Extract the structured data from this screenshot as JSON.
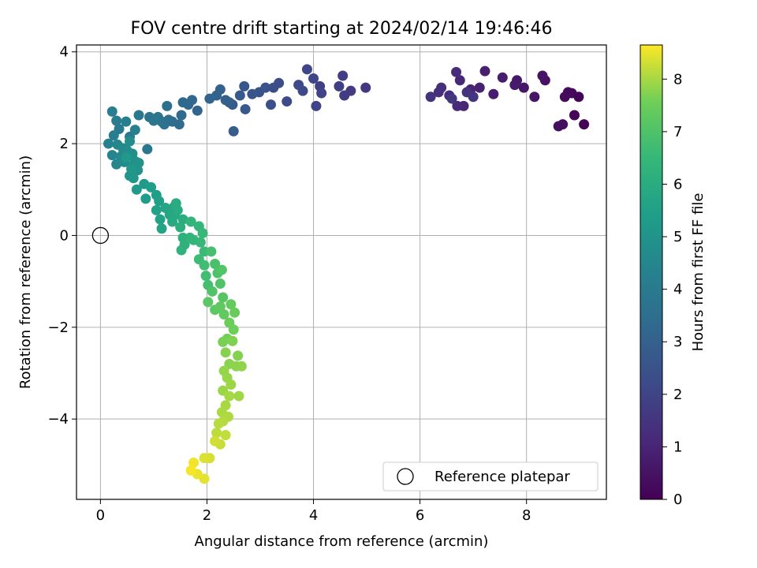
{
  "chart_data": {
    "type": "scatter",
    "title": "FOV centre drift starting at 2024/02/14 19:46:46",
    "xlabel": "Angular distance from reference (arcmin)",
    "ylabel": "Rotation from reference (arcmin)",
    "xlim": [
      -0.45,
      9.5
    ],
    "ylim": [
      -5.75,
      4.15
    ],
    "xticks": [
      0,
      2,
      4,
      6,
      8
    ],
    "yticks": [
      -4,
      -2,
      0,
      2,
      4
    ],
    "xtick_labels": [
      "0",
      "2",
      "4",
      "6",
      "8"
    ],
    "ytick_labels": [
      "−4",
      "−2",
      "0",
      "2",
      "4"
    ],
    "grid": true,
    "colorbar": {
      "label": "Hours from first FF file",
      "colormap": "viridis",
      "range": [
        0,
        8.65
      ],
      "ticks": [
        0,
        1,
        2,
        3,
        4,
        5,
        6,
        7,
        8
      ],
      "tick_labels": [
        "0",
        "1",
        "2",
        "3",
        "4",
        "5",
        "6",
        "7",
        "8"
      ]
    },
    "reference_point": {
      "x": 0,
      "y": 0,
      "legend_label": "Reference platepar"
    },
    "legend": {
      "placement": "lower-right",
      "entries": [
        "Reference platepar"
      ]
    },
    "points": [
      [
        9.08,
        2.42,
        0.05
      ],
      [
        8.98,
        3.02,
        0.1
      ],
      [
        8.9,
        2.62,
        0.15
      ],
      [
        8.85,
        3.1,
        0.2
      ],
      [
        8.78,
        3.12,
        0.25
      ],
      [
        8.72,
        3.02,
        0.3
      ],
      [
        8.68,
        2.42,
        0.35
      ],
      [
        8.6,
        2.38,
        0.4
      ],
      [
        8.35,
        3.38,
        0.45
      ],
      [
        8.3,
        3.48,
        0.5
      ],
      [
        8.15,
        3.02,
        0.55
      ],
      [
        7.95,
        3.22,
        0.6
      ],
      [
        7.82,
        3.38,
        0.65
      ],
      [
        7.78,
        3.28,
        0.7
      ],
      [
        7.55,
        3.44,
        0.75
      ],
      [
        7.38,
        3.08,
        0.8
      ],
      [
        7.22,
        3.58,
        0.85
      ],
      [
        7.12,
        3.22,
        0.9
      ],
      [
        6.95,
        3.18,
        1.0
      ],
      [
        6.82,
        2.82,
        1.05
      ],
      [
        6.75,
        3.38,
        1.1
      ],
      [
        6.7,
        2.82,
        1.15
      ],
      [
        6.68,
        3.56,
        1.2
      ],
      [
        6.55,
        3.05,
        1.25
      ],
      [
        6.4,
        3.22,
        1.3
      ],
      [
        6.35,
        3.12,
        1.35
      ],
      [
        6.2,
        3.02,
        1.4
      ],
      [
        6.88,
        3.12,
        1.45
      ],
      [
        7.0,
        3.02,
        1.5
      ],
      [
        6.6,
        2.98,
        1.55
      ],
      [
        4.98,
        3.22,
        1.65
      ],
      [
        4.7,
        3.15,
        1.7
      ],
      [
        4.58,
        3.05,
        1.75
      ],
      [
        4.55,
        3.48,
        1.8
      ],
      [
        4.48,
        3.25,
        1.85
      ],
      [
        4.12,
        3.25,
        1.9
      ],
      [
        4.15,
        3.1,
        1.95
      ],
      [
        4.05,
        2.82,
        2.0
      ],
      [
        4.0,
        3.42,
        2.05
      ],
      [
        3.88,
        3.62,
        2.1
      ],
      [
        3.8,
        3.15,
        2.15
      ],
      [
        3.72,
        3.28,
        2.2
      ],
      [
        3.5,
        2.92,
        2.25
      ],
      [
        3.35,
        3.32,
        2.3
      ],
      [
        3.25,
        3.22,
        2.35
      ],
      [
        3.2,
        2.85,
        2.4
      ],
      [
        3.1,
        3.22,
        2.5
      ],
      [
        2.98,
        3.12,
        2.55
      ],
      [
        2.85,
        3.08,
        2.6
      ],
      [
        2.72,
        2.75,
        2.65
      ],
      [
        2.7,
        3.25,
        2.7
      ],
      [
        2.62,
        3.05,
        2.75
      ],
      [
        2.48,
        2.85,
        2.8
      ],
      [
        2.5,
        2.27,
        2.85
      ],
      [
        2.42,
        2.9,
        2.9
      ],
      [
        2.35,
        2.95,
        2.95
      ],
      [
        2.25,
        3.18,
        3.0
      ],
      [
        2.18,
        3.05,
        3.05
      ],
      [
        2.05,
        2.98,
        3.1
      ],
      [
        1.82,
        2.72,
        3.15
      ],
      [
        1.72,
        2.95,
        3.2
      ],
      [
        1.65,
        2.85,
        3.25
      ],
      [
        1.55,
        2.9,
        3.3
      ],
      [
        1.52,
        2.62,
        3.35
      ],
      [
        1.48,
        2.42,
        3.4
      ],
      [
        1.35,
        2.48,
        3.45
      ],
      [
        1.28,
        2.52,
        3.5
      ],
      [
        1.25,
        2.82,
        3.55
      ],
      [
        1.2,
        2.42,
        3.6
      ],
      [
        1.15,
        2.48,
        3.65
      ],
      [
        1.08,
        2.58,
        3.7
      ],
      [
        0.92,
        2.58,
        3.75
      ],
      [
        1.0,
        2.5,
        3.8
      ],
      [
        0.88,
        1.88,
        3.85
      ],
      [
        0.72,
        2.62,
        3.9
      ],
      [
        0.55,
        2.15,
        3.95
      ],
      [
        0.35,
        2.32,
        4.0
      ],
      [
        0.3,
        2.5,
        4.05
      ],
      [
        0.25,
        2.18,
        4.1
      ],
      [
        0.22,
        2.7,
        4.15
      ],
      [
        0.48,
        2.48,
        4.2
      ],
      [
        0.65,
        2.3,
        4.25
      ],
      [
        0.15,
        2.0,
        4.35
      ],
      [
        0.22,
        1.75,
        4.4
      ],
      [
        0.32,
        1.98,
        4.45
      ],
      [
        0.3,
        1.55,
        4.5
      ],
      [
        0.38,
        1.72,
        4.55
      ],
      [
        0.42,
        1.9,
        4.6
      ],
      [
        0.45,
        1.6,
        4.65
      ],
      [
        0.5,
        1.85,
        4.7
      ],
      [
        0.55,
        2.05,
        4.75
      ],
      [
        0.6,
        1.78,
        4.8
      ],
      [
        0.6,
        1.52,
        4.85
      ],
      [
        0.65,
        1.62,
        4.9
      ],
      [
        0.7,
        1.42,
        4.95
      ],
      [
        0.72,
        1.58,
        5.0
      ],
      [
        0.55,
        1.3,
        5.05
      ],
      [
        0.62,
        1.25,
        5.1
      ],
      [
        0.58,
        1.45,
        5.15
      ],
      [
        0.48,
        1.7,
        5.2
      ],
      [
        0.68,
        1.0,
        5.25
      ],
      [
        0.82,
        1.12,
        5.3
      ],
      [
        0.85,
        0.8,
        5.35
      ],
      [
        0.95,
        1.05,
        5.4
      ],
      [
        1.05,
        0.88,
        5.45
      ],
      [
        1.1,
        0.75,
        5.5
      ],
      [
        1.05,
        0.55,
        5.55
      ],
      [
        1.12,
        0.35,
        5.6
      ],
      [
        1.15,
        0.15,
        5.65
      ],
      [
        1.22,
        0.6,
        5.7
      ],
      [
        1.3,
        0.45,
        5.75
      ],
      [
        1.38,
        0.62,
        5.8
      ],
      [
        1.4,
        0.45,
        5.85
      ],
      [
        1.35,
        0.3,
        5.9
      ],
      [
        1.45,
        0.55,
        5.95
      ],
      [
        1.42,
        0.7,
        6.0
      ],
      [
        1.55,
        0.35,
        6.05
      ],
      [
        1.5,
        0.18,
        6.1
      ],
      [
        1.55,
        -0.05,
        6.15
      ],
      [
        1.58,
        -0.2,
        6.2
      ],
      [
        1.52,
        -0.32,
        6.25
      ],
      [
        1.68,
        -0.05,
        6.3
      ],
      [
        1.7,
        0.3,
        6.35
      ],
      [
        1.75,
        -0.1,
        6.4
      ],
      [
        1.85,
        0.2,
        6.45
      ],
      [
        1.88,
        -0.15,
        6.5
      ],
      [
        1.92,
        0.05,
        6.55
      ],
      [
        1.95,
        -0.35,
        6.6
      ],
      [
        1.85,
        -0.52,
        6.65
      ],
      [
        1.95,
        -0.65,
        6.7
      ],
      [
        1.98,
        -0.88,
        6.75
      ],
      [
        2.02,
        -1.08,
        6.8
      ],
      [
        2.08,
        -0.35,
        6.85
      ],
      [
        2.15,
        -0.62,
        6.9
      ],
      [
        2.2,
        -0.82,
        6.95
      ],
      [
        2.1,
        -1.22,
        7.0
      ],
      [
        2.25,
        -1.05,
        7.05
      ],
      [
        2.28,
        -0.75,
        7.1
      ],
      [
        2.3,
        -1.35,
        7.15
      ],
      [
        2.02,
        -1.45,
        7.2
      ],
      [
        2.15,
        -1.62,
        7.25
      ],
      [
        2.25,
        -1.55,
        7.3
      ],
      [
        2.32,
        -1.72,
        7.35
      ],
      [
        2.45,
        -1.5,
        7.4
      ],
      [
        2.52,
        -1.68,
        7.45
      ],
      [
        2.42,
        -1.9,
        7.5
      ],
      [
        2.5,
        -2.05,
        7.55
      ],
      [
        2.38,
        -2.25,
        7.6
      ],
      [
        2.3,
        -2.32,
        7.65
      ],
      [
        2.48,
        -2.3,
        7.7
      ],
      [
        2.58,
        -2.62,
        7.72
      ],
      [
        2.35,
        -2.55,
        7.75
      ],
      [
        2.42,
        -2.8,
        7.78
      ],
      [
        2.55,
        -2.85,
        7.8
      ],
      [
        2.65,
        -2.85,
        7.82
      ],
      [
        2.32,
        -2.95,
        7.85
      ],
      [
        2.38,
        -3.1,
        7.88
      ],
      [
        2.45,
        -3.25,
        7.9
      ],
      [
        2.3,
        -3.38,
        7.92
      ],
      [
        2.6,
        -3.5,
        7.95
      ],
      [
        2.42,
        -3.5,
        7.98
      ],
      [
        2.35,
        -3.7,
        8.0
      ],
      [
        2.28,
        -3.85,
        8.03
      ],
      [
        2.4,
        -3.95,
        8.06
      ],
      [
        2.3,
        -4.05,
        8.1
      ],
      [
        2.22,
        -4.1,
        8.13
      ],
      [
        2.18,
        -4.3,
        8.16
      ],
      [
        2.35,
        -4.35,
        8.2
      ],
      [
        2.25,
        -4.55,
        8.25
      ],
      [
        2.15,
        -4.48,
        8.3
      ],
      [
        2.05,
        -4.85,
        8.35
      ],
      [
        1.95,
        -4.85,
        8.4
      ],
      [
        1.95,
        -5.3,
        8.45
      ],
      [
        1.82,
        -5.2,
        8.5
      ],
      [
        1.75,
        -4.95,
        8.55
      ],
      [
        1.7,
        -5.12,
        8.6
      ]
    ]
  }
}
